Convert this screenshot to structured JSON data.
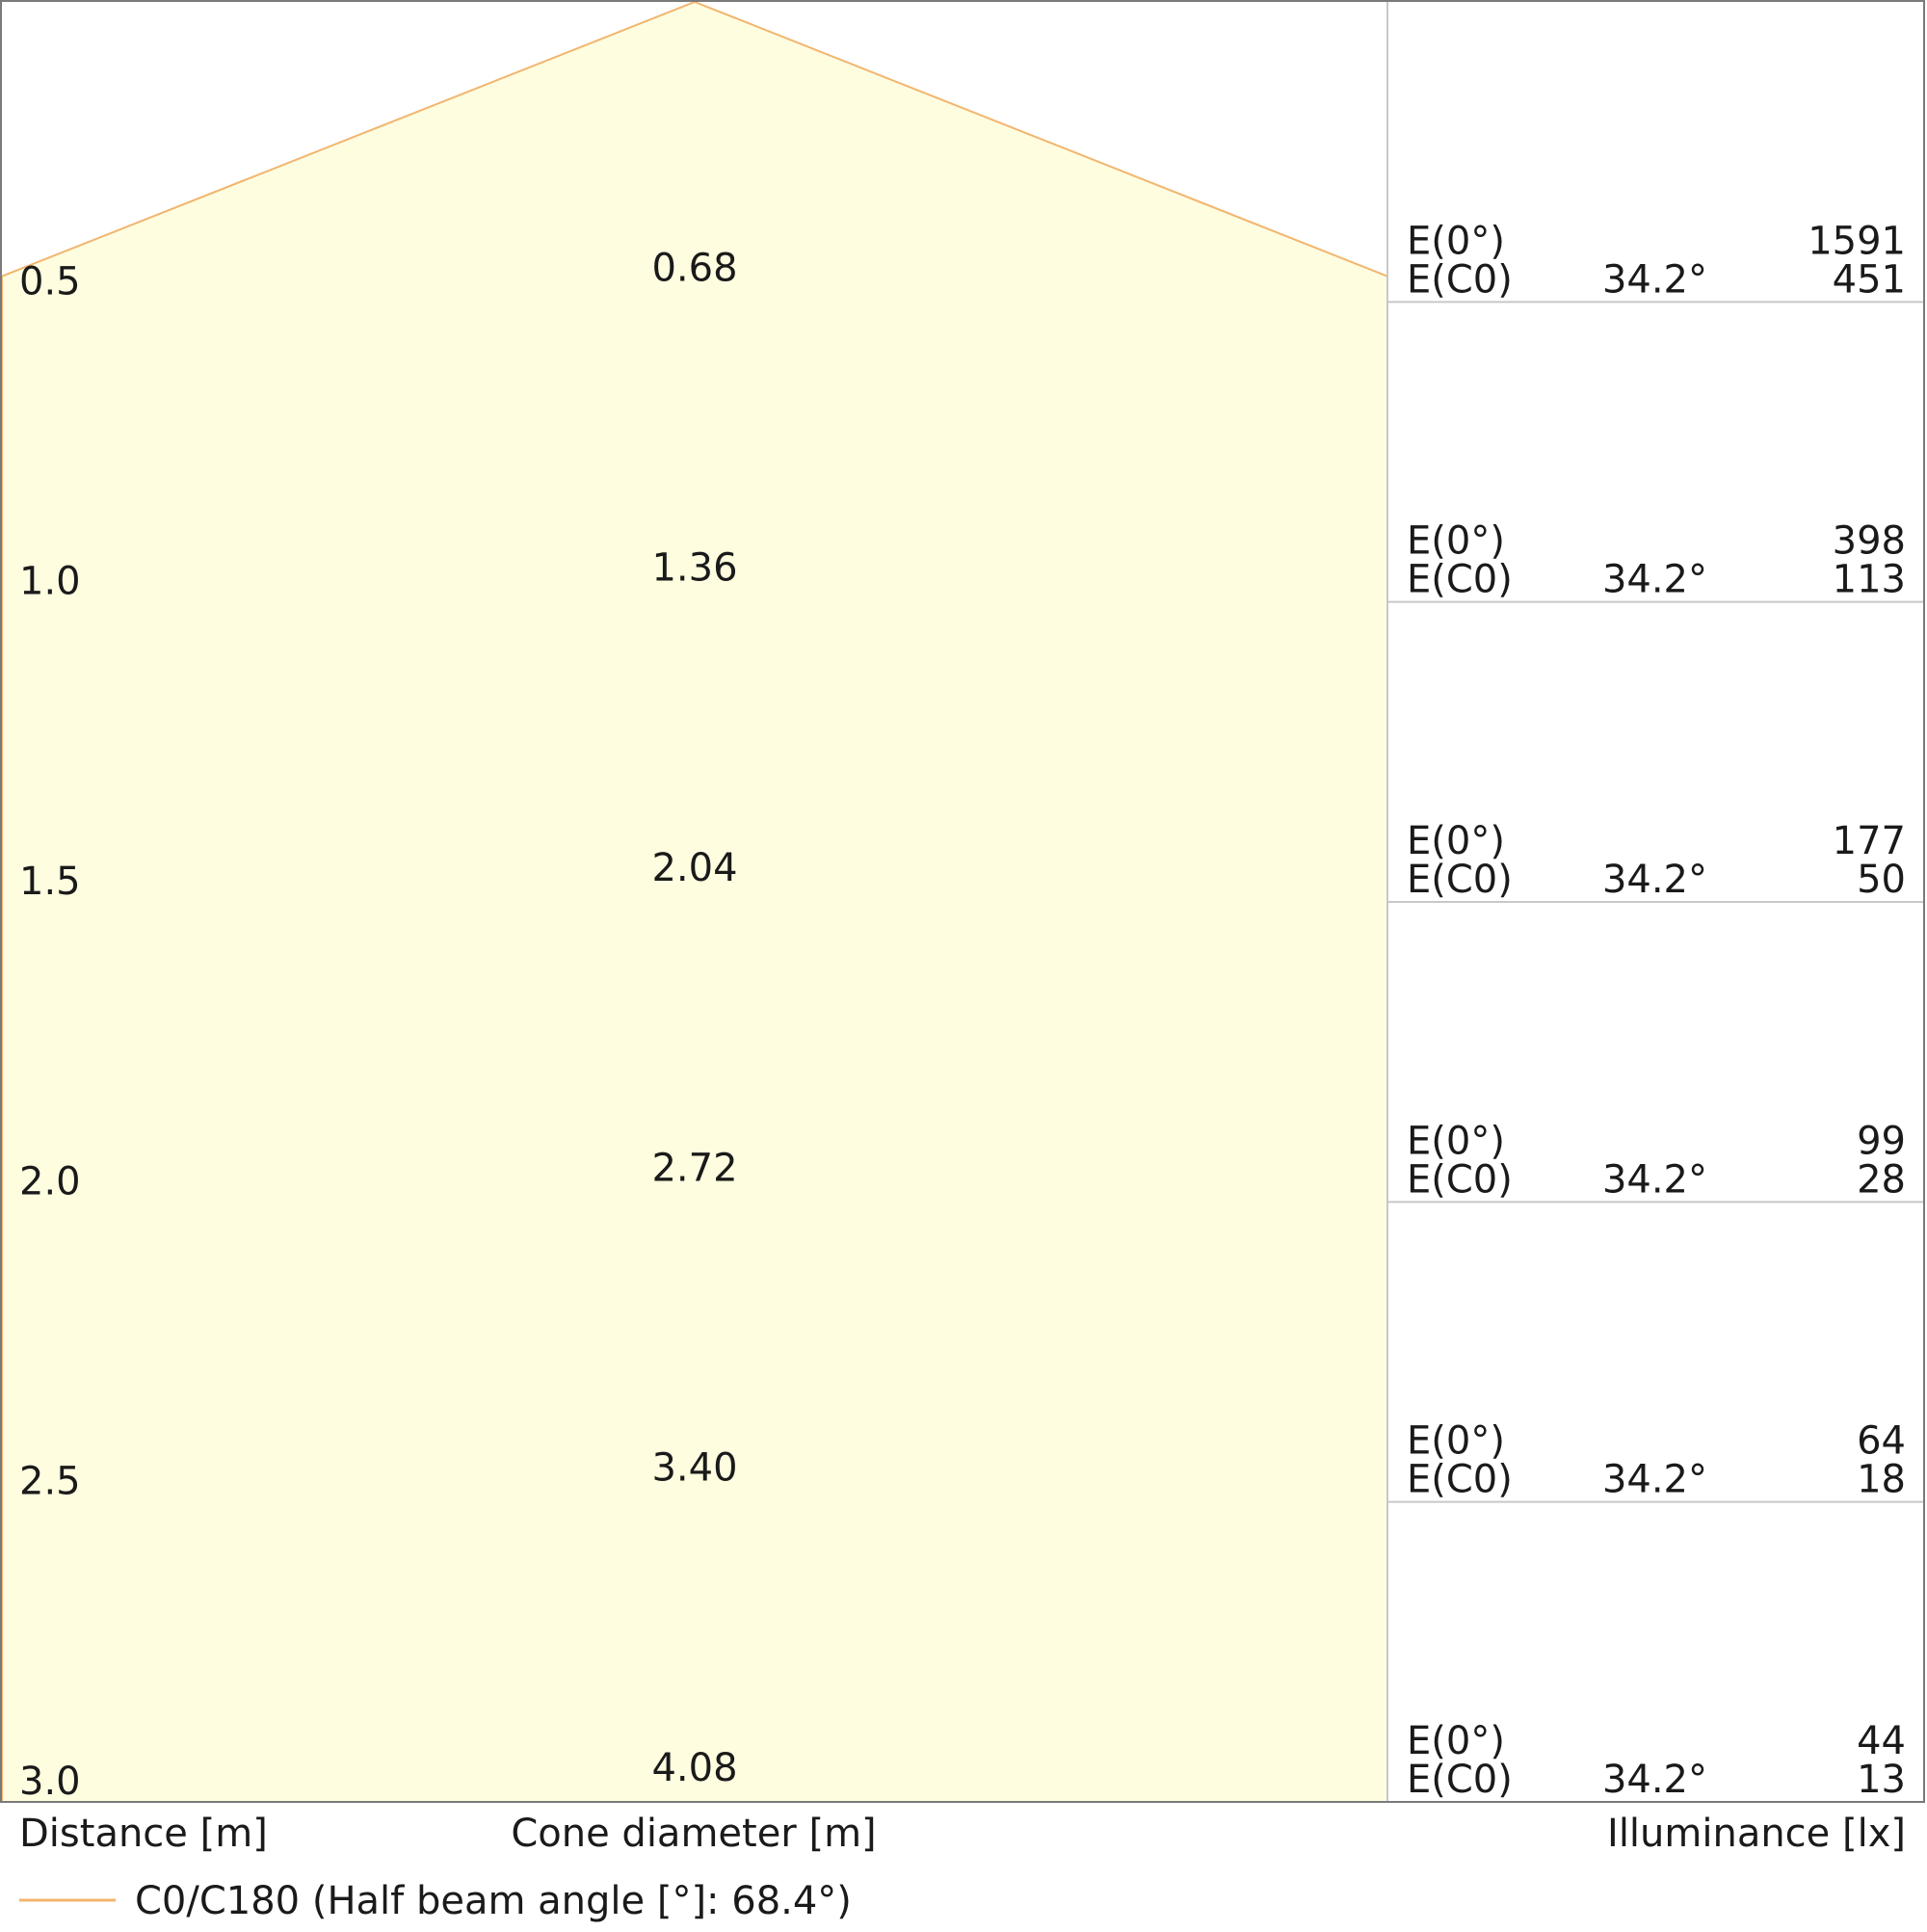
{
  "chart_data": {
    "type": "area",
    "title": "",
    "xlabel": "Distance [m]",
    "center_label": "Cone diameter [m]",
    "right_label": "Illuminance [lx]",
    "legend": {
      "label": "C0/C180 (Half beam angle [°]: 68.4°)",
      "color": "#f2b56e"
    },
    "fill_color": "#fefde0",
    "half_beam_angle_deg": 68.4,
    "distance_range": [
      0,
      3.0
    ],
    "rows": [
      {
        "distance": "0.5",
        "d": 0.5,
        "diameter": "0.68",
        "e0_label": "E(0°)",
        "ec0_label": "E(C0)",
        "angle": "34.2°",
        "e0": "1591",
        "ec0": "451"
      },
      {
        "distance": "1.0",
        "d": 1.0,
        "diameter": "1.36",
        "e0_label": "E(0°)",
        "ec0_label": "E(C0)",
        "angle": "34.2°",
        "e0": "398",
        "ec0": "113"
      },
      {
        "distance": "1.5",
        "d": 1.5,
        "diameter": "2.04",
        "e0_label": "E(0°)",
        "ec0_label": "E(C0)",
        "angle": "34.2°",
        "e0": "177",
        "ec0": "50"
      },
      {
        "distance": "2.0",
        "d": 2.0,
        "diameter": "2.72",
        "e0_label": "E(0°)",
        "ec0_label": "E(C0)",
        "angle": "34.2°",
        "e0": "99",
        "ec0": "28"
      },
      {
        "distance": "2.5",
        "d": 2.5,
        "diameter": "3.40",
        "e0_label": "E(0°)",
        "ec0_label": "E(C0)",
        "angle": "34.2°",
        "e0": "64",
        "ec0": "18"
      },
      {
        "distance": "3.0",
        "d": 3.0,
        "diameter": "4.08",
        "e0_label": "E(0°)",
        "ec0_label": "E(C0)",
        "angle": "34.2°",
        "e0": "44",
        "ec0": "13"
      }
    ]
  }
}
